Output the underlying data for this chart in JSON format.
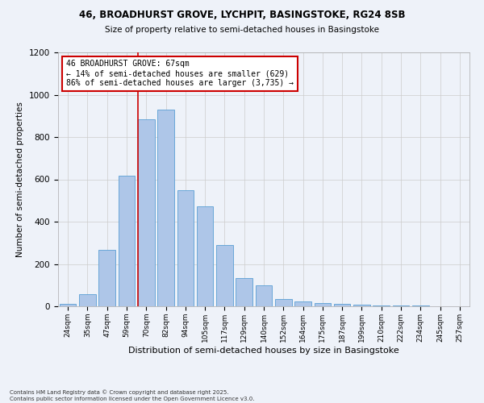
{
  "title1": "46, BROADHURST GROVE, LYCHPIT, BASINGSTOKE, RG24 8SB",
  "title2": "Size of property relative to semi-detached houses in Basingstoke",
  "xlabel": "Distribution of semi-detached houses by size in Basingstoke",
  "ylabel": "Number of semi-detached properties",
  "categories": [
    "24sqm",
    "35sqm",
    "47sqm",
    "59sqm",
    "70sqm",
    "82sqm",
    "94sqm",
    "105sqm",
    "117sqm",
    "129sqm",
    "140sqm",
    "152sqm",
    "164sqm",
    "175sqm",
    "187sqm",
    "199sqm",
    "210sqm",
    "222sqm",
    "234sqm",
    "245sqm",
    "257sqm"
  ],
  "values": [
    10,
    58,
    265,
    618,
    882,
    930,
    548,
    472,
    290,
    133,
    100,
    35,
    22,
    15,
    12,
    8,
    5,
    3,
    2,
    1,
    1
  ],
  "bar_color": "#aec6e8",
  "bar_edge_color": "#5a9fd4",
  "annotation_title": "46 BROADHURST GROVE: 67sqm",
  "annotation_line1": "← 14% of semi-detached houses are smaller (629)",
  "annotation_line2": "86% of semi-detached houses are larger (3,735) →",
  "annotation_color": "#cc0000",
  "ylim": [
    0,
    1200
  ],
  "yticks": [
    0,
    200,
    400,
    600,
    800,
    1000,
    1200
  ],
  "grid_color": "#cccccc",
  "background_color": "#eef2f9",
  "footnote1": "Contains HM Land Registry data © Crown copyright and database right 2025.",
  "footnote2": "Contains public sector information licensed under the Open Government Licence v3.0."
}
